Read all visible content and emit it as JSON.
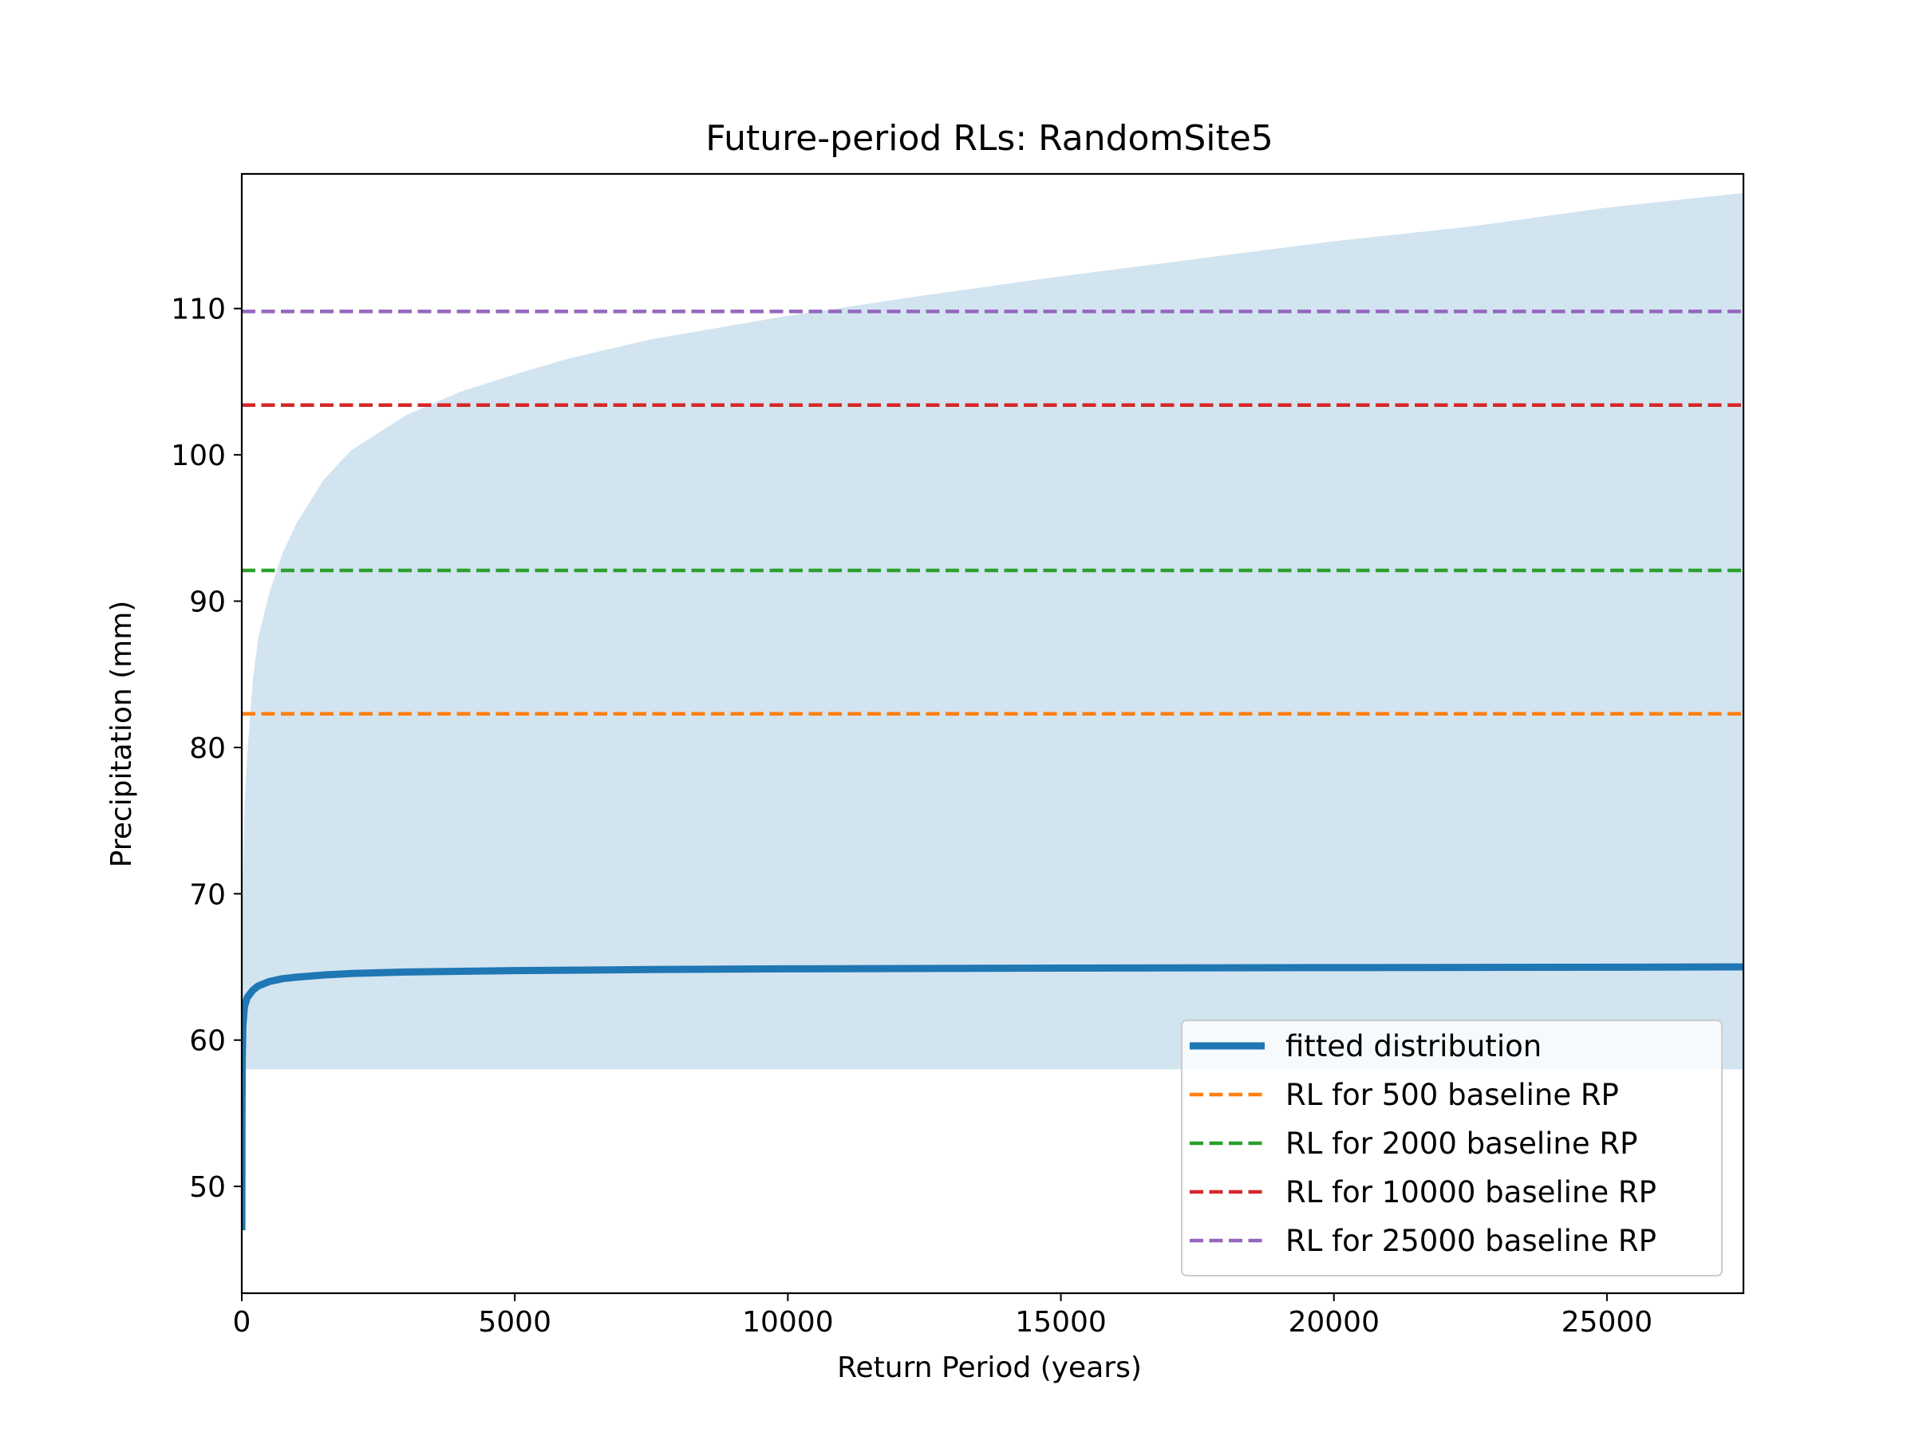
{
  "chart_data": {
    "type": "line",
    "title": "Future-period RLs: RandomSite5",
    "xlabel": "Return Period (years)",
    "ylabel": "Precipitation (mm)",
    "xlim": [
      0,
      27500
    ],
    "ylim": [
      42.7,
      119.2
    ],
    "x_ticks": [
      0,
      5000,
      10000,
      15000,
      20000,
      25000
    ],
    "x_tick_labels": [
      "0",
      "5000",
      "10000",
      "15000",
      "20000",
      "25000"
    ],
    "y_ticks": [
      50,
      60,
      70,
      80,
      90,
      100,
      110
    ],
    "y_tick_labels": [
      "50",
      "60",
      "70",
      "80",
      "90",
      "100",
      "110"
    ],
    "grid": false,
    "legend_position": "lower-right",
    "series": [
      {
        "name": "fitted distribution",
        "kind": "line",
        "color": "#1f77b4",
        "x": [
          2,
          5,
          10,
          20,
          50,
          100,
          200,
          300,
          500,
          750,
          1000,
          1500,
          2000,
          3000,
          5000,
          7500,
          10000,
          15000,
          20000,
          25000,
          27500
        ],
        "y": [
          47.0,
          55.5,
          59.0,
          61.0,
          62.3,
          62.9,
          63.4,
          63.7,
          64.0,
          64.2,
          64.3,
          64.45,
          64.55,
          64.65,
          64.75,
          64.82,
          64.87,
          64.92,
          64.95,
          64.98,
          65.0
        ]
      },
      {
        "name": "RL for 500 baseline RP",
        "kind": "hline",
        "color": "#ff7f0e",
        "y": 82.3
      },
      {
        "name": "RL for 2000 baseline RP",
        "kind": "hline",
        "color": "#2ca02c",
        "y": 92.1
      },
      {
        "name": "RL for 10000 baseline RP",
        "kind": "hline",
        "color": "#d62728",
        "y": 103.4
      },
      {
        "name": "RL for 25000 baseline RP",
        "kind": "hline",
        "color": "#9467bd",
        "y": 109.8
      }
    ],
    "confidence_band": {
      "color": "#1f77b4",
      "opacity": 0.2,
      "x": [
        2,
        20,
        50,
        100,
        200,
        300,
        500,
        750,
        1000,
        1500,
        2000,
        3000,
        4000,
        5000,
        6000,
        7500,
        10000,
        12500,
        15000,
        17500,
        20000,
        22500,
        25000,
        27500
      ],
      "lower": [
        58.0,
        58.0,
        58.0,
        58.0,
        58.0,
        58.0,
        58.0,
        58.0,
        58.0,
        58.0,
        58.0,
        58.0,
        58.0,
        58.0,
        58.0,
        58.0,
        58.0,
        58.0,
        58.0,
        58.0,
        58.0,
        58.0,
        58.0,
        58.0
      ],
      "upper": [
        66.0,
        71.0,
        76.0,
        79.5,
        84.5,
        87.5,
        90.5,
        93.3,
        95.3,
        98.3,
        100.3,
        102.7,
        104.3,
        105.5,
        106.6,
        107.9,
        109.5,
        110.9,
        112.2,
        113.4,
        114.6,
        115.6,
        116.9,
        117.9
      ]
    }
  }
}
